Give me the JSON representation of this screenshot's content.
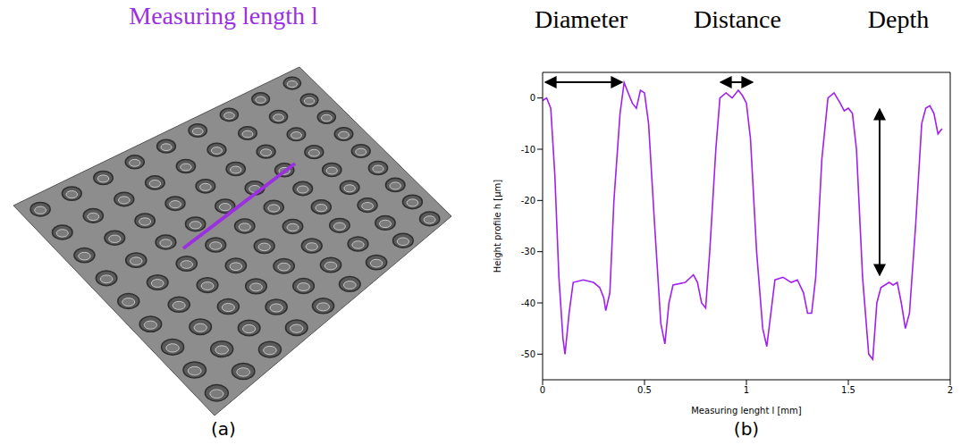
{
  "panels": [
    {
      "label": "(a)",
      "title": "Measuring length l"
    },
    {
      "label": "(b)"
    }
  ],
  "chart_data": {
    "type": "line",
    "x_label": "Measuring lenght l [mm]",
    "y_label": "Height profile h [µm]",
    "annotations": [
      "Diameter",
      "Distance",
      "Depth"
    ],
    "color": "#a020f0",
    "grid": false,
    "xlim": [
      0,
      2
    ],
    "ylim": [
      -55,
      5
    ],
    "xticks": [
      0,
      0.5,
      1,
      1.5,
      2
    ],
    "yticks": [
      -50,
      -40,
      -30,
      -20,
      -10,
      0
    ],
    "x": [
      0,
      0.02,
      0.04,
      0.06,
      0.08,
      0.1,
      0.11,
      0.13,
      0.15,
      0.2,
      0.25,
      0.28,
      0.3,
      0.31,
      0.33,
      0.35,
      0.38,
      0.4,
      0.42,
      0.44,
      0.46,
      0.48,
      0.5,
      0.52,
      0.55,
      0.58,
      0.6,
      0.62,
      0.64,
      0.7,
      0.74,
      0.76,
      0.78,
      0.8,
      0.82,
      0.85,
      0.87,
      0.9,
      0.93,
      0.96,
      0.98,
      1.0,
      1.02,
      1.05,
      1.08,
      1.1,
      1.12,
      1.14,
      1.18,
      1.22,
      1.25,
      1.28,
      1.3,
      1.32,
      1.34,
      1.37,
      1.4,
      1.43,
      1.46,
      1.48,
      1.5,
      1.52,
      1.54,
      1.57,
      1.6,
      1.62,
      1.64,
      1.66,
      1.7,
      1.72,
      1.74,
      1.76,
      1.78,
      1.8,
      1.83,
      1.86,
      1.88,
      1.9,
      1.92,
      1.94,
      1.96
    ],
    "values": [
      -0.5,
      0,
      -2,
      -15,
      -35,
      -47,
      -50,
      -42,
      -36,
      -35.5,
      -36,
      -37,
      -39,
      -41.5,
      -38,
      -20,
      -3,
      3,
      1,
      -1,
      -2,
      1.5,
      1,
      -5,
      -25,
      -44,
      -48,
      -40,
      -36.5,
      -36,
      -34.5,
      -36,
      -40,
      -41,
      -30,
      -10,
      0,
      1,
      0,
      1.5,
      0.5,
      -1,
      -8,
      -30,
      -45,
      -48.5,
      -42,
      -35.5,
      -35,
      -36,
      -35.5,
      -38,
      -42,
      -42,
      -35,
      -12,
      0,
      1,
      -1,
      -2.5,
      -2,
      -3,
      -10,
      -35,
      -50,
      -51,
      -40,
      -37,
      -36,
      -36.5,
      -36,
      -40,
      -45,
      -42,
      -25,
      -5,
      -2,
      -1.5,
      -3,
      -7,
      -6
    ]
  }
}
